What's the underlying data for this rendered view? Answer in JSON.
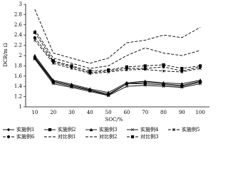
{
  "chart_data": {
    "type": "line",
    "x_label": "SOC/%",
    "y_label": "DCR/m Ω",
    "categories": [
      "10",
      "20",
      "30",
      "40",
      "50",
      "60",
      "70",
      "80",
      "90",
      "100"
    ],
    "ylim": [
      1,
      3
    ],
    "yticks": [
      1,
      1.2,
      1.4,
      1.6,
      1.8,
      2,
      2.2,
      2.4,
      2.6,
      2.8,
      3
    ],
    "legend": "bottom",
    "series": [
      {
        "name": "实施例1",
        "color": "#000000",
        "line_style": "solid",
        "marker": "diamond",
        "values": [
          1.97,
          1.5,
          1.42,
          1.33,
          1.25,
          1.45,
          1.48,
          1.45,
          1.42,
          1.5
        ]
      },
      {
        "name": "实施例2",
        "color": "#000000",
        "line_style": "solid",
        "marker": "square",
        "values": [
          1.95,
          1.48,
          1.4,
          1.32,
          1.23,
          1.45,
          1.45,
          1.43,
          1.4,
          1.48
        ]
      },
      {
        "name": "实施例3",
        "color": "#000000",
        "line_style": "solid",
        "marker": "triangle",
        "values": [
          2.0,
          1.52,
          1.44,
          1.35,
          1.28,
          1.47,
          1.5,
          1.47,
          1.45,
          1.52
        ]
      },
      {
        "name": "实施例4",
        "color": "#000000",
        "line_style": "solid",
        "marker": "cross",
        "values": [
          1.93,
          1.45,
          1.38,
          1.3,
          1.22,
          1.4,
          1.42,
          1.4,
          1.38,
          1.45
        ]
      },
      {
        "name": "实施例5",
        "color": "#000000",
        "line_style": "dashed",
        "marker": "star",
        "values": [
          2.3,
          1.85,
          1.75,
          1.65,
          1.68,
          1.72,
          1.73,
          1.7,
          1.68,
          1.75
        ]
      },
      {
        "name": "实施例6",
        "color": "#000000",
        "line_style": "dashed",
        "marker": "circle",
        "values": [
          2.35,
          1.88,
          1.78,
          1.67,
          1.7,
          1.75,
          1.75,
          1.78,
          1.7,
          1.78
        ]
      },
      {
        "name": "对比例1",
        "color": "#000000",
        "line_style": "dashed",
        "marker": "none",
        "values": [
          2.9,
          2.05,
          1.95,
          1.85,
          1.95,
          2.25,
          2.3,
          2.4,
          2.35,
          2.55
        ]
      },
      {
        "name": "对比例2",
        "color": "#000000",
        "line_style": "dashed",
        "marker": "none",
        "values": [
          2.5,
          1.95,
          1.85,
          1.75,
          1.8,
          2.0,
          2.15,
          2.05,
          2.0,
          2.1
        ]
      },
      {
        "name": "对比例3",
        "color": "#000000",
        "line_style": "dashed",
        "marker": "square",
        "values": [
          2.45,
          1.9,
          1.8,
          1.7,
          1.72,
          1.78,
          1.8,
          1.82,
          1.75,
          1.8
        ]
      }
    ]
  }
}
